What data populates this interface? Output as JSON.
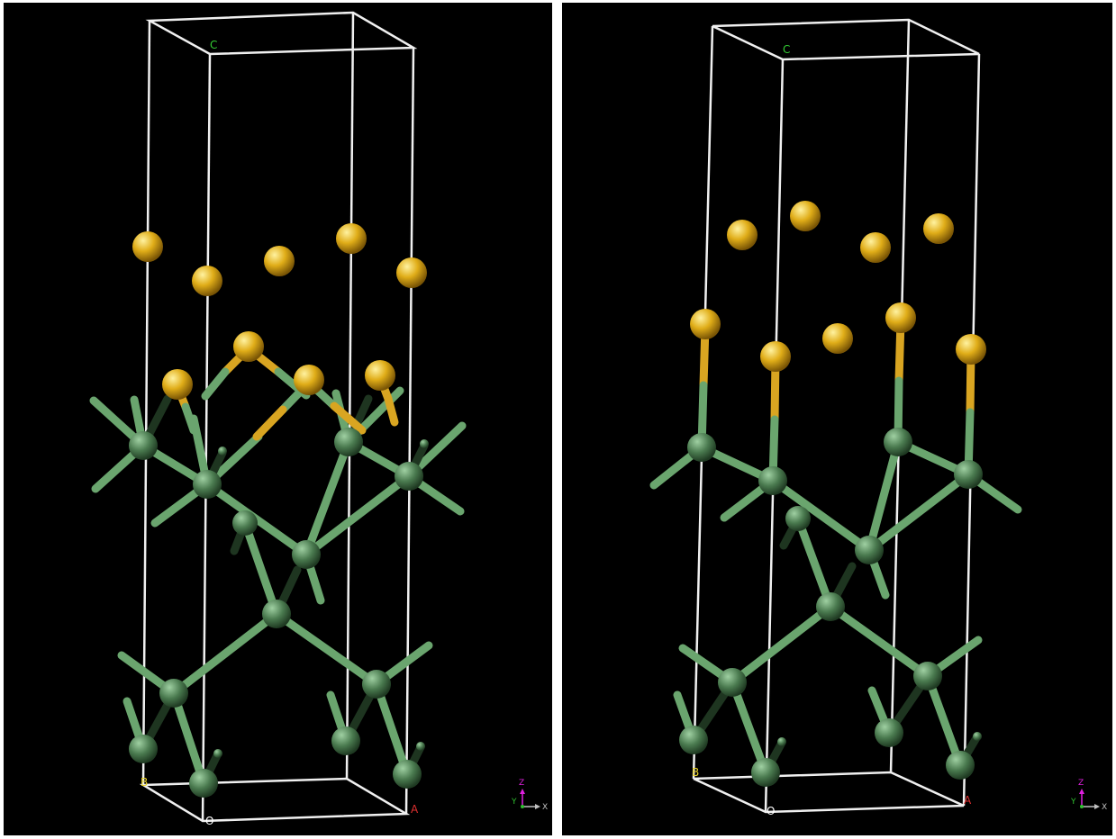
{
  "panels": [
    {
      "name": "left",
      "labels": {
        "c": "C",
        "b": "B",
        "o": "O",
        "a": "A"
      },
      "axes": {
        "z": "Z",
        "y": "Y",
        "x": "X"
      }
    },
    {
      "name": "right",
      "labels": {
        "c": "C",
        "b": "B",
        "o": "O",
        "a": "A"
      },
      "axes": {
        "z": "Z",
        "y": "Y",
        "x": "X"
      }
    }
  ],
  "colors": {
    "background": "#000000",
    "cell_edge": "#f0f0f0",
    "green_atom": "#4a7a4f",
    "green_bond": "#6aa56e",
    "gold_atom": "#e0ad18",
    "gold_bond": "#d9a521",
    "label_c": "#33cc33",
    "label_b": "#e8d22a",
    "label_o": "#ffffff",
    "label_a": "#e03030",
    "axis_z": "#e020e0",
    "axis_y": "#30c030",
    "axis_x": "#c0c0c0"
  }
}
